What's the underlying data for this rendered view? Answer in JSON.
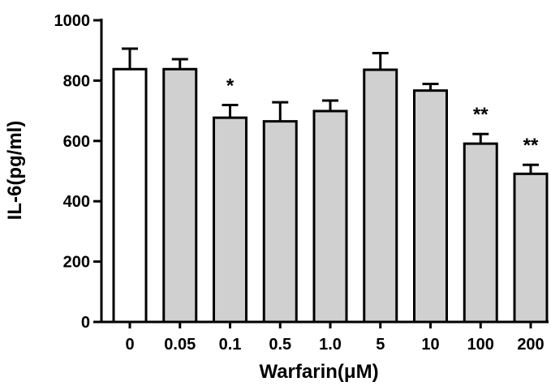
{
  "chart_data": {
    "type": "bar",
    "title": "",
    "xlabel": "Warfarin(μM)",
    "ylabel": "IL-6(pg/ml)",
    "ylim": [
      0,
      1000
    ],
    "yticks": [
      "0",
      "200",
      "400",
      "600",
      "800",
      "1000"
    ],
    "categories": [
      "0",
      "0.05",
      "0.1",
      "0.5",
      "1.0",
      "5",
      "10",
      "100",
      "200"
    ],
    "values": [
      838,
      838,
      677,
      665,
      699,
      836,
      767,
      591,
      491
    ],
    "errors": [
      68,
      33,
      42,
      63,
      35,
      55,
      22,
      32,
      30
    ],
    "significance": [
      "",
      "",
      "*",
      "",
      "",
      "",
      "",
      "**",
      "**"
    ],
    "bar_fill": [
      "#ffffff",
      "#d0d0d0",
      "#d0d0d0",
      "#d0d0d0",
      "#d0d0d0",
      "#d0d0d0",
      "#d0d0d0",
      "#d0d0d0",
      "#d0d0d0"
    ],
    "bar_stroke": "#000000",
    "grid": false
  }
}
